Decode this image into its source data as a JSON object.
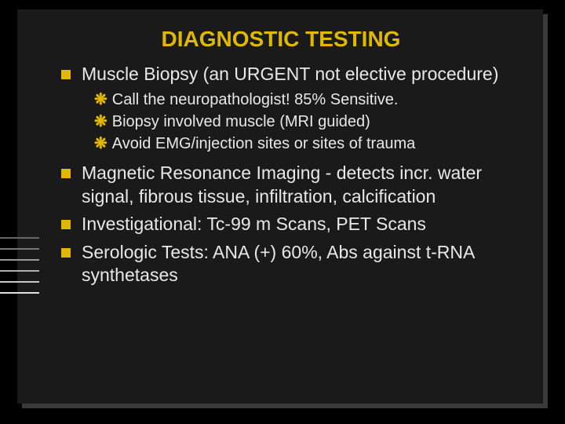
{
  "title": "DIAGNOSTIC TESTING",
  "bullets": [
    {
      "text": "Muscle Biopsy (an URGENT not elective procedure)",
      "subs": [
        "Call the neuropathologist! 85% Sensitive.",
        "Biopsy involved muscle (MRI guided)",
        "Avoid EMG/injection sites or sites of trauma"
      ]
    },
    {
      "text": "Magnetic Resonance Imaging - detects incr. water signal, fibrous tissue, infiltration, calcification",
      "subs": []
    },
    {
      "text": "Investigational:  Tc-99 m Scans, PET Scans",
      "subs": []
    },
    {
      "text": "Serologic Tests:  ANA (+) 60%, Abs against  t-RNA synthetases",
      "subs": []
    }
  ],
  "colors": {
    "background": "#000000",
    "slide": "#1a1a1a",
    "shadow": "#3a3a3a",
    "accent": "#e0b800",
    "text": "#e8e8e8"
  },
  "side_line_colors": [
    "#666666",
    "#777777",
    "#999999",
    "#b0b0b0",
    "#c8c8c8",
    "#e0e0e0"
  ]
}
